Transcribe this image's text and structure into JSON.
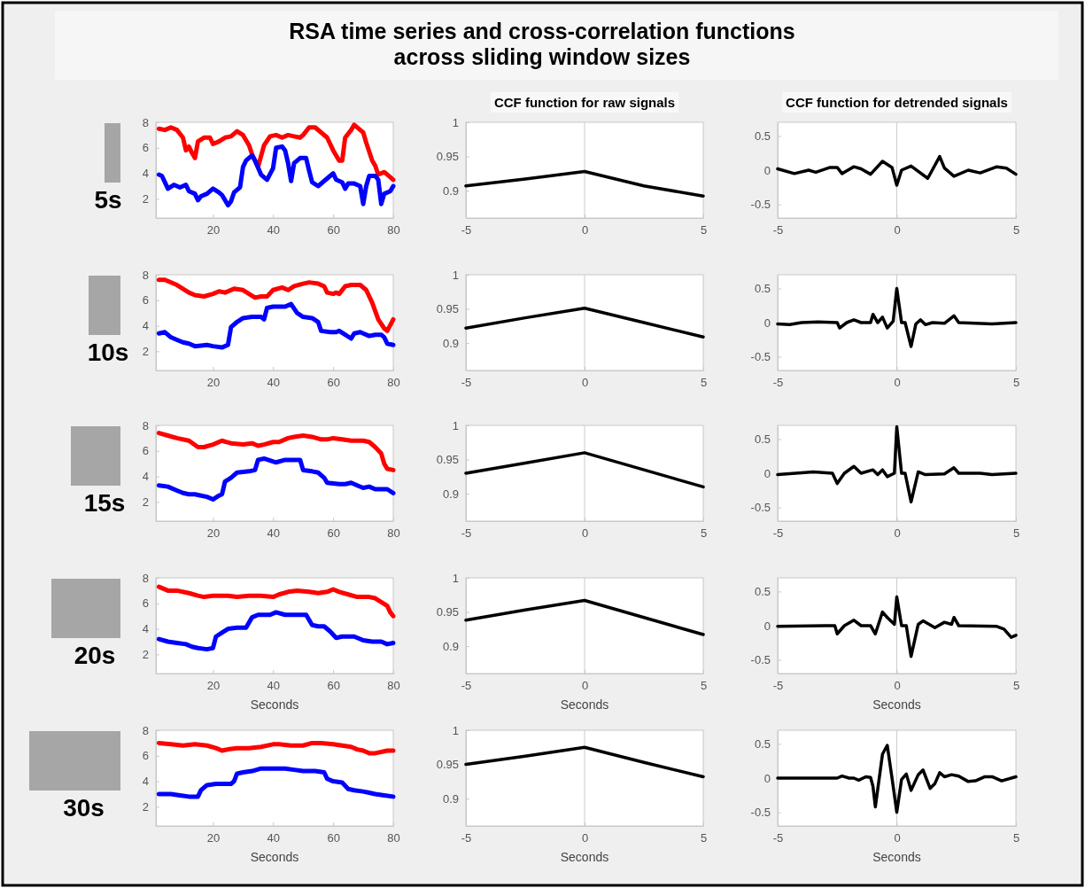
{
  "chart_data": [
    {
      "type": "line",
      "title": "RSA time series and cross-correlation functions\nacross sliding window sizes",
      "annotations": [
        "5s"
      ],
      "xlim": [
        1,
        80
      ],
      "ylim": [
        0.5,
        8
      ],
      "xticks": [
        20,
        40,
        60,
        80
      ],
      "yticks": [
        2,
        4,
        6,
        8
      ],
      "series": [
        {
          "color": "#ff0000",
          "x": [
            2,
            4,
            6,
            8,
            10,
            11,
            12,
            13,
            14,
            15,
            17,
            19,
            20,
            22,
            24,
            26,
            28,
            30,
            32,
            33,
            35,
            37,
            39,
            41,
            43,
            45,
            47,
            49,
            50,
            52,
            54,
            56,
            58,
            60,
            62,
            63,
            64,
            66,
            67,
            69,
            70,
            71,
            73,
            74,
            75,
            77,
            79,
            80
          ],
          "values": [
            7.5,
            7.4,
            7.6,
            7.4,
            6.8,
            5.8,
            6.1,
            5.6,
            5.2,
            6.5,
            6.8,
            6.8,
            6.3,
            6.5,
            6.8,
            6.9,
            7.3,
            7.0,
            6.2,
            5.5,
            4.5,
            6.2,
            6.9,
            7.0,
            6.8,
            7.0,
            6.9,
            6.8,
            7.0,
            7.6,
            7.6,
            7.2,
            6.8,
            5.8,
            5.0,
            5.0,
            6.8,
            7.4,
            7.8,
            7.4,
            7.2,
            6.4,
            5.0,
            4.6,
            3.9,
            4.1,
            3.7,
            3.5
          ]
        },
        {
          "color": "#0000ff",
          "x": [
            2,
            3,
            4,
            5,
            7,
            9,
            11,
            12,
            14,
            15,
            16,
            18,
            20,
            22,
            23,
            25,
            26,
            27,
            29,
            30,
            31,
            33,
            34,
            36,
            38,
            40,
            41,
            43,
            44,
            45,
            46,
            47,
            49,
            51,
            52,
            53,
            55,
            57,
            59,
            60,
            61,
            63,
            64,
            65,
            67,
            69,
            70,
            71,
            72,
            74,
            75,
            76,
            77,
            79,
            80
          ],
          "values": [
            3.9,
            3.8,
            3.3,
            2.8,
            3.1,
            2.9,
            3.1,
            2.6,
            2.4,
            1.9,
            2.2,
            2.4,
            2.8,
            2.5,
            2.3,
            1.5,
            1.8,
            2.5,
            2.9,
            4.5,
            5.0,
            5.4,
            5.0,
            3.9,
            3.5,
            4.4,
            6.0,
            6.1,
            5.8,
            4.8,
            3.4,
            4.8,
            5.2,
            5.2,
            4.2,
            3.3,
            3.0,
            3.4,
            3.8,
            4.0,
            3.5,
            3.3,
            2.8,
            3.2,
            3.2,
            3.0,
            1.6,
            3.0,
            3.8,
            3.8,
            3.5,
            1.6,
            2.4,
            2.6,
            3.0
          ]
        }
      ]
    },
    {
      "type": "line",
      "title": "CCF function for raw signals",
      "xlim": [
        -5,
        5
      ],
      "ylim": [
        0.86,
        1
      ],
      "xticks": [
        -5,
        0,
        5
      ],
      "yticks": [
        0.9,
        0.95,
        1
      ],
      "ref_lines": [
        {
          "axis": "x",
          "value": 0,
          "color": "#cccccc"
        }
      ],
      "series": [
        {
          "color": "#000000",
          "x": [
            -5,
            -2.5,
            0,
            2.5,
            5
          ],
          "values": [
            0.907,
            0.917,
            0.928,
            0.907,
            0.892
          ]
        }
      ]
    },
    {
      "type": "line",
      "title": "CCF function for detrended signals",
      "xlim": [
        -5,
        5
      ],
      "ylim": [
        -0.7,
        0.7
      ],
      "xticks": [
        -5,
        0,
        5
      ],
      "yticks": [
        -0.5,
        0,
        0.5
      ],
      "ref_lines": [
        {
          "axis": "x",
          "value": 0,
          "color": "#cccccc"
        }
      ],
      "series": [
        {
          "color": "#000000",
          "x": [
            -5,
            -4.3,
            -3.7,
            -3.4,
            -2.8,
            -2.5,
            -2.3,
            -2.1,
            -1.8,
            -1.5,
            -1.1,
            -0.6,
            -0.2,
            0,
            0.2,
            0.6,
            1.3,
            1.8,
            2,
            2.4,
            3,
            3.5,
            4.2,
            4.6,
            5
          ],
          "values": [
            0.02,
            -0.05,
            0,
            -0.03,
            0.04,
            0.04,
            -0.05,
            -0.01,
            0.05,
            0.02,
            -0.06,
            0.13,
            0.04,
            -0.22,
            0,
            0.06,
            -0.12,
            0.2,
            0.03,
            -0.09,
            0,
            -0.04,
            0.05,
            0.03,
            -0.06
          ]
        }
      ]
    },
    {
      "type": "line",
      "annotations": [
        "10s"
      ],
      "xlim": [
        1,
        80
      ],
      "ylim": [
        0.5,
        8
      ],
      "xticks": [
        20,
        40,
        60,
        80
      ],
      "yticks": [
        2,
        4,
        6,
        8
      ],
      "series": [
        {
          "color": "#ff0000",
          "x": [
            2,
            4,
            8,
            12,
            14,
            17,
            20,
            22,
            24,
            27,
            30,
            32,
            34,
            36,
            38,
            40,
            43,
            45,
            47,
            50,
            52,
            55,
            57,
            58,
            60,
            61,
            62,
            64,
            66,
            69,
            71,
            73,
            75,
            77,
            78,
            80
          ],
          "values": [
            7.6,
            7.6,
            7.2,
            6.6,
            6.4,
            6.3,
            6.5,
            6.7,
            6.6,
            6.9,
            6.8,
            6.5,
            6.2,
            6.3,
            6.3,
            6.8,
            7.0,
            6.8,
            7.1,
            7.3,
            7.4,
            7.3,
            7.1,
            6.6,
            6.5,
            6.6,
            6.5,
            7.1,
            7.2,
            7.2,
            6.8,
            5.8,
            4.5,
            3.8,
            3.6,
            4.5
          ]
        },
        {
          "color": "#0000ff",
          "x": [
            2,
            4,
            6,
            8,
            10,
            12,
            14,
            18,
            20,
            23,
            25,
            26,
            28,
            30,
            33,
            36,
            37,
            38,
            40,
            44,
            46,
            48,
            50,
            53,
            55,
            56,
            59,
            61,
            62,
            64,
            66,
            67,
            69,
            70,
            72,
            74,
            76,
            77,
            78,
            80
          ],
          "values": [
            3.4,
            3.5,
            3.1,
            2.9,
            2.7,
            2.6,
            2.4,
            2.5,
            2.4,
            2.3,
            2.5,
            3.9,
            4.3,
            4.6,
            4.7,
            4.7,
            4.5,
            5.4,
            5.5,
            5.5,
            5.7,
            5.0,
            4.7,
            4.6,
            4.3,
            3.6,
            3.5,
            3.5,
            3.6,
            3.3,
            3.0,
            3.4,
            3.5,
            3.4,
            3.2,
            3.3,
            3.3,
            3.1,
            2.6,
            2.5
          ]
        }
      ]
    },
    {
      "type": "line",
      "xlim": [
        -5,
        5
      ],
      "ylim": [
        0.86,
        1
      ],
      "xticks": [
        -5,
        0,
        5
      ],
      "yticks": [
        0.9,
        0.95,
        1
      ],
      "ref_lines": [
        {
          "axis": "x",
          "value": 0,
          "color": "#cccccc"
        }
      ],
      "series": [
        {
          "color": "#000000",
          "x": [
            -5,
            -2.5,
            0,
            2.5,
            5
          ],
          "values": [
            0.922,
            0.937,
            0.951,
            0.93,
            0.909
          ]
        }
      ]
    },
    {
      "type": "line",
      "xlim": [
        -5,
        5
      ],
      "ylim": [
        -0.7,
        0.7
      ],
      "xticks": [
        -5,
        0,
        5
      ],
      "yticks": [
        -0.5,
        0,
        0.5
      ],
      "ref_lines": [
        {
          "axis": "x",
          "value": 0,
          "color": "#cccccc"
        }
      ],
      "series": [
        {
          "color": "#000000",
          "x": [
            -5,
            -4.5,
            -4,
            -3.3,
            -2.5,
            -2.4,
            -2.1,
            -1.8,
            -1.5,
            -1.1,
            -1,
            -0.8,
            -0.6,
            -0.4,
            -0.15,
            0,
            0.2,
            0.35,
            0.6,
            0.8,
            1,
            1.2,
            1.5,
            2,
            2.4,
            2.6,
            4,
            5
          ],
          "values": [
            -0.02,
            -0.03,
            0,
            0.01,
            0,
            -0.08,
            0,
            0.04,
            0,
            0,
            0.12,
            0,
            0.08,
            -0.08,
            0.02,
            0.5,
            0,
            0,
            -0.35,
            -0.02,
            0.04,
            -0.03,
            0,
            -0.01,
            0.1,
            0,
            -0.02,
            0
          ]
        }
      ]
    },
    {
      "type": "line",
      "annotations": [
        "15s"
      ],
      "xlim": [
        1,
        80
      ],
      "ylim": [
        0.5,
        8
      ],
      "xticks": [
        20,
        40,
        60,
        80
      ],
      "yticks": [
        2,
        4,
        6,
        8
      ],
      "series": [
        {
          "color": "#ff0000",
          "x": [
            2,
            5,
            8,
            12,
            15,
            17,
            20,
            23,
            26,
            30,
            33,
            35,
            37,
            40,
            42,
            45,
            47,
            50,
            53,
            56,
            58,
            60,
            63,
            66,
            70,
            72,
            74,
            76,
            77,
            78,
            80
          ],
          "values": [
            7.4,
            7.2,
            7.0,
            6.8,
            6.3,
            6.3,
            6.5,
            6.8,
            6.6,
            6.5,
            6.6,
            6.4,
            6.5,
            6.7,
            6.7,
            7.0,
            7.1,
            7.2,
            7.1,
            6.9,
            6.9,
            7.0,
            6.9,
            6.8,
            6.8,
            6.7,
            6.3,
            5.8,
            5.0,
            4.6,
            4.5
          ]
        },
        {
          "color": "#0000ff",
          "x": [
            2,
            5,
            8,
            10,
            12,
            14,
            16,
            18,
            20,
            22,
            23,
            24,
            26,
            28,
            32,
            34,
            35,
            37,
            41,
            44,
            49,
            50,
            53,
            55,
            57,
            58,
            62,
            64,
            66,
            68,
            70,
            72,
            74,
            78,
            80
          ],
          "values": [
            3.3,
            3.2,
            2.9,
            2.7,
            2.6,
            2.6,
            2.5,
            2.4,
            2.2,
            2.5,
            2.6,
            3.6,
            3.9,
            4.3,
            4.4,
            4.5,
            5.3,
            5.4,
            5.1,
            5.3,
            5.3,
            4.5,
            4.4,
            4.3,
            3.9,
            3.5,
            3.4,
            3.4,
            3.5,
            3.3,
            3.1,
            3.2,
            3.0,
            3.0,
            2.7
          ]
        }
      ]
    },
    {
      "type": "line",
      "xlim": [
        -5,
        5
      ],
      "ylim": [
        0.86,
        1
      ],
      "xticks": [
        -5,
        0,
        5
      ],
      "yticks": [
        0.9,
        0.95,
        1
      ],
      "ref_lines": [
        {
          "axis": "x",
          "value": 0,
          "color": "#cccccc"
        }
      ],
      "series": [
        {
          "color": "#000000",
          "x": [
            -5,
            -2.5,
            0,
            2.5,
            5
          ],
          "values": [
            0.93,
            0.945,
            0.96,
            0.935,
            0.91
          ]
        }
      ]
    },
    {
      "type": "line",
      "xlim": [
        -5,
        5
      ],
      "ylim": [
        -0.7,
        0.7
      ],
      "xticks": [
        -5,
        0,
        5
      ],
      "yticks": [
        -0.5,
        0,
        0.5
      ],
      "ref_lines": [
        {
          "axis": "x",
          "value": 0,
          "color": "#cccccc"
        }
      ],
      "series": [
        {
          "color": "#000000",
          "x": [
            -5,
            -3.5,
            -2.7,
            -2.5,
            -2.2,
            -1.8,
            -1.5,
            -1,
            -0.8,
            -0.6,
            -0.4,
            -0.1,
            0,
            0.2,
            0.35,
            0.6,
            0.9,
            1.2,
            2,
            2.4,
            2.6,
            3.5,
            4,
            5
          ],
          "values": [
            -0.02,
            0.02,
            0,
            -0.15,
            0,
            0.1,
            0,
            0.05,
            -0.02,
            0.05,
            -0.05,
            0,
            0.68,
            0,
            0,
            -0.42,
            0.02,
            -0.02,
            -0.01,
            0.08,
            0,
            0,
            -0.02,
            0
          ]
        }
      ]
    },
    {
      "type": "line",
      "annotations": [
        "20s"
      ],
      "xlabel": "Seconds",
      "xlim": [
        1,
        80
      ],
      "ylim": [
        0.5,
        8
      ],
      "xticks": [
        20,
        40,
        60,
        80
      ],
      "yticks": [
        2,
        4,
        6,
        8
      ],
      "series": [
        {
          "color": "#ff0000",
          "x": [
            2,
            5,
            8,
            12,
            15,
            17,
            20,
            25,
            28,
            32,
            36,
            40,
            42,
            45,
            48,
            52,
            55,
            58,
            60,
            62,
            65,
            68,
            72,
            74,
            76,
            78,
            79,
            80
          ],
          "values": [
            7.3,
            7.0,
            7.0,
            6.8,
            6.6,
            6.5,
            6.6,
            6.6,
            6.5,
            6.6,
            6.6,
            6.5,
            6.7,
            6.9,
            7.0,
            6.9,
            6.8,
            6.9,
            7.1,
            6.9,
            6.7,
            6.5,
            6.5,
            6.4,
            6.1,
            5.8,
            5.3,
            5.0
          ]
        },
        {
          "color": "#0000ff",
          "x": [
            2,
            5,
            8,
            11,
            13,
            15,
            18,
            20,
            21,
            23,
            25,
            28,
            31,
            33,
            35,
            39,
            41,
            44,
            48,
            51,
            53,
            55,
            57,
            59,
            61,
            63,
            67,
            70,
            73,
            76,
            78,
            80
          ],
          "values": [
            3.2,
            3.0,
            2.9,
            2.8,
            2.6,
            2.5,
            2.4,
            2.5,
            3.4,
            3.7,
            4.0,
            4.1,
            4.1,
            4.9,
            5.1,
            5.1,
            5.3,
            5.1,
            5.1,
            5.1,
            4.3,
            4.2,
            4.2,
            3.8,
            3.3,
            3.4,
            3.4,
            3.1,
            3.0,
            3.0,
            2.8,
            2.9
          ]
        }
      ]
    },
    {
      "type": "line",
      "xlabel": "Seconds",
      "xlim": [
        -5,
        5
      ],
      "ylim": [
        0.86,
        1
      ],
      "xticks": [
        -5,
        0,
        5
      ],
      "yticks": [
        0.9,
        0.95,
        1
      ],
      "ref_lines": [
        {
          "axis": "x",
          "value": 0,
          "color": "#cccccc"
        }
      ],
      "series": [
        {
          "color": "#000000",
          "x": [
            -5,
            -2.5,
            0,
            2.5,
            5
          ],
          "values": [
            0.938,
            0.953,
            0.967,
            0.942,
            0.917
          ]
        }
      ]
    },
    {
      "type": "line",
      "xlabel": "Seconds",
      "xlim": [
        -5,
        5
      ],
      "ylim": [
        -0.7,
        0.7
      ],
      "xticks": [
        -5,
        0,
        5
      ],
      "yticks": [
        -0.5,
        0,
        0.5
      ],
      "ref_lines": [
        {
          "axis": "x",
          "value": 0,
          "color": "#cccccc"
        }
      ],
      "series": [
        {
          "color": "#000000",
          "x": [
            -5,
            -3,
            -2.6,
            -2.5,
            -2.2,
            -1.8,
            -1.5,
            -1.1,
            -0.9,
            -0.6,
            -0.4,
            -0.1,
            0,
            0.2,
            0.4,
            0.6,
            0.9,
            1.1,
            1.6,
            2,
            2.3,
            2.4,
            2.6,
            4.2,
            4.5,
            4.8,
            5
          ],
          "values": [
            -0.01,
            0,
            0,
            -0.12,
            0,
            0.08,
            0,
            0,
            -0.12,
            0.2,
            0.12,
            0.02,
            0.42,
            0,
            0,
            -0.45,
            0.02,
            0.07,
            -0.03,
            0.05,
            0.02,
            0.12,
            0,
            -0.01,
            -0.05,
            -0.17,
            -0.14
          ]
        }
      ]
    },
    {
      "type": "line",
      "annotations": [
        "30s"
      ],
      "xlabel": "Seconds",
      "xlim": [
        1,
        80
      ],
      "ylim": [
        0.5,
        8
      ],
      "xticks": [
        20,
        40,
        60,
        80
      ],
      "yticks": [
        2,
        4,
        6,
        8
      ],
      "series": [
        {
          "color": "#ff0000",
          "x": [
            2,
            6,
            10,
            14,
            18,
            21,
            23,
            25,
            28,
            32,
            36,
            40,
            42,
            46,
            50,
            53,
            56,
            60,
            63,
            66,
            68,
            70,
            72,
            74,
            76,
            78,
            80
          ],
          "values": [
            7.0,
            6.9,
            6.8,
            6.9,
            6.8,
            6.6,
            6.4,
            6.5,
            6.6,
            6.6,
            6.7,
            6.9,
            6.9,
            6.8,
            6.8,
            7.0,
            7.0,
            6.9,
            6.8,
            6.7,
            6.5,
            6.4,
            6.2,
            6.2,
            6.3,
            6.4,
            6.4
          ]
        },
        {
          "color": "#0000ff",
          "x": [
            2,
            6,
            9,
            12,
            15,
            16,
            18,
            21,
            24,
            26,
            27,
            28,
            30,
            33,
            36,
            40,
            44,
            47,
            50,
            54,
            57,
            58,
            60,
            63,
            65,
            67,
            70,
            72,
            74,
            77,
            80
          ],
          "values": [
            3.0,
            3.0,
            2.9,
            2.8,
            2.8,
            3.3,
            3.7,
            3.8,
            3.8,
            3.8,
            4.0,
            4.6,
            4.7,
            4.8,
            5.0,
            5.0,
            5.0,
            4.9,
            4.8,
            4.8,
            4.7,
            4.2,
            4.0,
            3.9,
            3.4,
            3.3,
            3.2,
            3.1,
            3.0,
            2.9,
            2.8
          ]
        }
      ]
    },
    {
      "type": "line",
      "xlabel": "Seconds",
      "xlim": [
        -5,
        5
      ],
      "ylim": [
        0.86,
        1
      ],
      "xticks": [
        -5,
        0,
        5
      ],
      "yticks": [
        0.9,
        0.95,
        1
      ],
      "ref_lines": [
        {
          "axis": "x",
          "value": 0,
          "color": "#cccccc"
        }
      ],
      "series": [
        {
          "color": "#000000",
          "x": [
            -5,
            -2.5,
            0,
            2.5,
            5
          ],
          "values": [
            0.95,
            0.962,
            0.975,
            0.953,
            0.932
          ]
        }
      ]
    },
    {
      "type": "line",
      "xlabel": "Seconds",
      "xlim": [
        -5,
        5
      ],
      "ylim": [
        -0.7,
        0.7
      ],
      "xticks": [
        -5,
        0,
        5
      ],
      "yticks": [
        -0.5,
        0,
        0.5
      ],
      "ref_lines": [
        {
          "axis": "x",
          "value": 0,
          "color": "#cccccc"
        }
      ],
      "series": [
        {
          "color": "#000000",
          "x": [
            -5,
            -3.5,
            -2.5,
            -2.3,
            -2,
            -1.8,
            -1.6,
            -1.3,
            -1.1,
            -1,
            -0.9,
            -0.6,
            -0.4,
            -0.2,
            0,
            0.2,
            0.4,
            0.6,
            0.9,
            1.1,
            1.4,
            1.6,
            1.8,
            2,
            2.3,
            2.6,
            3,
            3.3,
            3.7,
            4,
            4.4,
            5
          ],
          "values": [
            0,
            0,
            0,
            0.03,
            0,
            0,
            -0.03,
            0.02,
            0.01,
            -0.12,
            -0.42,
            0.35,
            0.48,
            0,
            -0.5,
            -0.02,
            0.06,
            -0.18,
            0.05,
            0.12,
            -0.15,
            -0.08,
            0.08,
            0.02,
            0.05,
            0.03,
            -0.05,
            -0.04,
            0.02,
            0.02,
            -0.04,
            0.02
          ]
        }
      ]
    }
  ]
}
